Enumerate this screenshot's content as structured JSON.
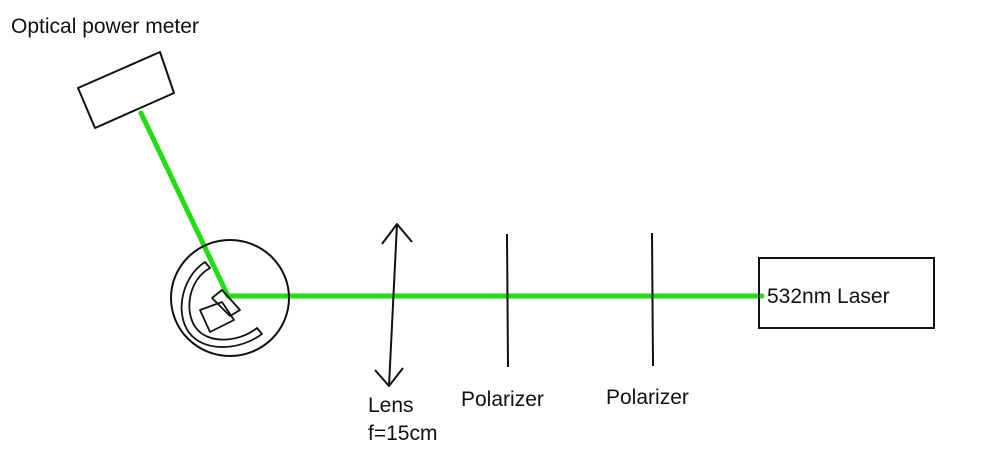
{
  "labels": {
    "power_meter": "Optical power meter",
    "laser": "532nm Laser",
    "lens_name": "Lens",
    "lens_focal": "f=15cm",
    "polarizer_1": "Polarizer",
    "polarizer_2": "Polarizer"
  },
  "colors": {
    "beam": "#22dd11",
    "outline": "#111111",
    "background": "#ffffff"
  }
}
